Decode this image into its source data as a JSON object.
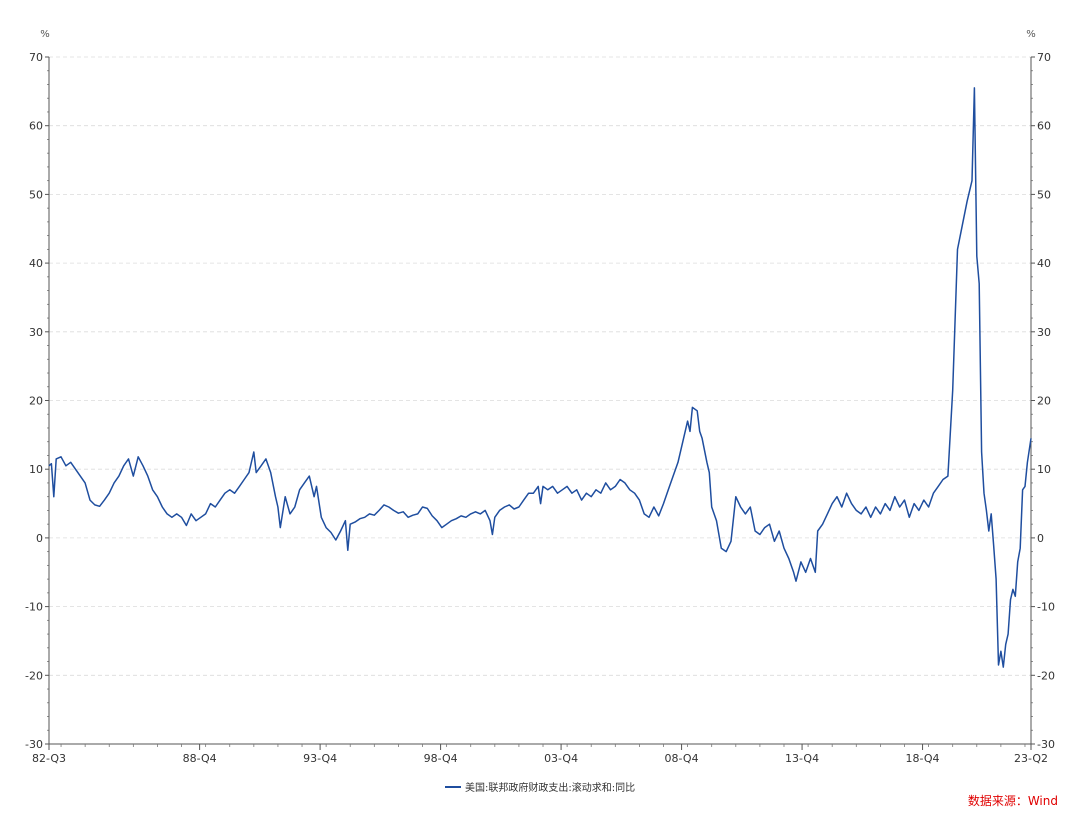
{
  "chart_data": {
    "type": "line",
    "y_unit_left": "%",
    "y_unit_right": "%",
    "ylim": [
      -30,
      70
    ],
    "y_ticks": [
      -30,
      -20,
      -10,
      0,
      10,
      20,
      30,
      40,
      50,
      60,
      70
    ],
    "x_ticks": [
      "82-Q3",
      "88-Q4",
      "93-Q4",
      "98-Q4",
      "03-Q4",
      "08-Q4",
      "13-Q4",
      "18-Q4",
      "23-Q2"
    ],
    "x_tick_positions": [
      1982.5,
      1988.75,
      1993.75,
      1998.75,
      2003.75,
      2008.75,
      2013.75,
      2018.75,
      2023.25
    ],
    "xlim": [
      1982.5,
      2023.25
    ],
    "grid": true,
    "legend_position": "bottom",
    "series": [
      {
        "name": "美国:联邦政府财政支出:滚动求和:同比",
        "color": "#1f4e9f",
        "points": [
          [
            1982.5,
            10.5
          ],
          [
            1982.6,
            10.8
          ],
          [
            1982.7,
            6.0
          ],
          [
            1982.8,
            11.5
          ],
          [
            1983.0,
            11.8
          ],
          [
            1983.2,
            10.5
          ],
          [
            1983.4,
            11.0
          ],
          [
            1983.6,
            10.0
          ],
          [
            1983.8,
            9.0
          ],
          [
            1984.0,
            8.0
          ],
          [
            1984.2,
            5.5
          ],
          [
            1984.4,
            4.8
          ],
          [
            1984.6,
            4.6
          ],
          [
            1984.8,
            5.5
          ],
          [
            1985.0,
            6.5
          ],
          [
            1985.2,
            8.0
          ],
          [
            1985.4,
            9.0
          ],
          [
            1985.6,
            10.5
          ],
          [
            1985.8,
            11.5
          ],
          [
            1986.0,
            9.0
          ],
          [
            1986.2,
            11.8
          ],
          [
            1986.4,
            10.5
          ],
          [
            1986.6,
            9.0
          ],
          [
            1986.8,
            7.0
          ],
          [
            1987.0,
            6.0
          ],
          [
            1987.2,
            4.5
          ],
          [
            1987.4,
            3.5
          ],
          [
            1987.6,
            3.0
          ],
          [
            1987.8,
            3.5
          ],
          [
            1988.0,
            3.0
          ],
          [
            1988.2,
            1.8
          ],
          [
            1988.4,
            3.5
          ],
          [
            1988.6,
            2.5
          ],
          [
            1988.8,
            3.0
          ],
          [
            1989.0,
            3.5
          ],
          [
            1989.2,
            5.0
          ],
          [
            1989.4,
            4.5
          ],
          [
            1989.6,
            5.5
          ],
          [
            1989.8,
            6.5
          ],
          [
            1990.0,
            7.0
          ],
          [
            1990.2,
            6.5
          ],
          [
            1990.4,
            7.5
          ],
          [
            1990.6,
            8.5
          ],
          [
            1990.8,
            9.5
          ],
          [
            1991.0,
            12.5
          ],
          [
            1991.1,
            9.5
          ],
          [
            1991.3,
            10.5
          ],
          [
            1991.5,
            11.5
          ],
          [
            1991.7,
            9.5
          ],
          [
            1991.9,
            6.0
          ],
          [
            1992.0,
            4.5
          ],
          [
            1992.1,
            1.5
          ],
          [
            1992.3,
            6.0
          ],
          [
            1992.5,
            3.5
          ],
          [
            1992.7,
            4.5
          ],
          [
            1992.9,
            7.0
          ],
          [
            1993.1,
            8.0
          ],
          [
            1993.3,
            9.0
          ],
          [
            1993.5,
            6.0
          ],
          [
            1993.6,
            7.5
          ],
          [
            1993.8,
            3.0
          ],
          [
            1994.0,
            1.5
          ],
          [
            1994.2,
            0.8
          ],
          [
            1994.4,
            -0.3
          ],
          [
            1994.6,
            1.0
          ],
          [
            1994.8,
            2.5
          ],
          [
            1994.9,
            -1.8
          ],
          [
            1995.0,
            2.0
          ],
          [
            1995.2,
            2.3
          ],
          [
            1995.4,
            2.8
          ],
          [
            1995.6,
            3.0
          ],
          [
            1995.8,
            3.5
          ],
          [
            1996.0,
            3.3
          ],
          [
            1996.2,
            4.0
          ],
          [
            1996.4,
            4.8
          ],
          [
            1996.6,
            4.5
          ],
          [
            1996.8,
            4.0
          ],
          [
            1997.0,
            3.6
          ],
          [
            1997.2,
            3.8
          ],
          [
            1997.4,
            3.0
          ],
          [
            1997.6,
            3.3
          ],
          [
            1997.8,
            3.5
          ],
          [
            1998.0,
            4.5
          ],
          [
            1998.2,
            4.3
          ],
          [
            1998.4,
            3.2
          ],
          [
            1998.6,
            2.5
          ],
          [
            1998.8,
            1.5
          ],
          [
            1999.0,
            2.0
          ],
          [
            1999.2,
            2.5
          ],
          [
            1999.4,
            2.8
          ],
          [
            1999.6,
            3.2
          ],
          [
            1999.8,
            3.0
          ],
          [
            2000.0,
            3.5
          ],
          [
            2000.2,
            3.8
          ],
          [
            2000.4,
            3.5
          ],
          [
            2000.6,
            4.0
          ],
          [
            2000.8,
            2.5
          ],
          [
            2000.9,
            0.5
          ],
          [
            2001.0,
            3.0
          ],
          [
            2001.2,
            4.0
          ],
          [
            2001.4,
            4.5
          ],
          [
            2001.6,
            4.8
          ],
          [
            2001.8,
            4.2
          ],
          [
            2002.0,
            4.5
          ],
          [
            2002.2,
            5.5
          ],
          [
            2002.4,
            6.5
          ],
          [
            2002.6,
            6.5
          ],
          [
            2002.8,
            7.5
          ],
          [
            2002.9,
            5.0
          ],
          [
            2003.0,
            7.5
          ],
          [
            2003.2,
            7.0
          ],
          [
            2003.4,
            7.5
          ],
          [
            2003.6,
            6.5
          ],
          [
            2003.8,
            7.0
          ],
          [
            2004.0,
            7.5
          ],
          [
            2004.2,
            6.5
          ],
          [
            2004.4,
            7.0
          ],
          [
            2004.6,
            5.5
          ],
          [
            2004.8,
            6.5
          ],
          [
            2005.0,
            6.0
          ],
          [
            2005.2,
            7.0
          ],
          [
            2005.4,
            6.5
          ],
          [
            2005.6,
            8.0
          ],
          [
            2005.8,
            7.0
          ],
          [
            2006.0,
            7.5
          ],
          [
            2006.2,
            8.5
          ],
          [
            2006.4,
            8.0
          ],
          [
            2006.6,
            7.0
          ],
          [
            2006.8,
            6.5
          ],
          [
            2007.0,
            5.5
          ],
          [
            2007.2,
            3.5
          ],
          [
            2007.4,
            3.0
          ],
          [
            2007.6,
            4.5
          ],
          [
            2007.8,
            3.2
          ],
          [
            2008.0,
            5.0
          ],
          [
            2008.2,
            7.0
          ],
          [
            2008.4,
            9.0
          ],
          [
            2008.6,
            11.0
          ],
          [
            2008.8,
            14.0
          ],
          [
            2009.0,
            17.0
          ],
          [
            2009.1,
            15.5
          ],
          [
            2009.2,
            19.0
          ],
          [
            2009.4,
            18.5
          ],
          [
            2009.5,
            15.5
          ],
          [
            2009.6,
            14.5
          ],
          [
            2009.8,
            11.0
          ],
          [
            2009.9,
            9.5
          ],
          [
            2010.0,
            4.5
          ],
          [
            2010.2,
            2.5
          ],
          [
            2010.4,
            -1.5
          ],
          [
            2010.6,
            -2.0
          ],
          [
            2010.8,
            -0.5
          ],
          [
            2011.0,
            6.0
          ],
          [
            2011.2,
            4.5
          ],
          [
            2011.4,
            3.5
          ],
          [
            2011.6,
            4.5
          ],
          [
            2011.8,
            1.0
          ],
          [
            2012.0,
            0.5
          ],
          [
            2012.2,
            1.5
          ],
          [
            2012.4,
            2.0
          ],
          [
            2012.6,
            -0.5
          ],
          [
            2012.8,
            1.0
          ],
          [
            2013.0,
            -1.5
          ],
          [
            2013.2,
            -3.0
          ],
          [
            2013.4,
            -5.0
          ],
          [
            2013.5,
            -6.3
          ],
          [
            2013.7,
            -3.5
          ],
          [
            2013.9,
            -5.0
          ],
          [
            2014.1,
            -3.0
          ],
          [
            2014.3,
            -5.0
          ],
          [
            2014.4,
            1.0
          ],
          [
            2014.6,
            2.0
          ],
          [
            2014.8,
            3.5
          ],
          [
            2015.0,
            5.0
          ],
          [
            2015.2,
            6.0
          ],
          [
            2015.4,
            4.5
          ],
          [
            2015.6,
            6.5
          ],
          [
            2015.8,
            5.0
          ],
          [
            2016.0,
            4.0
          ],
          [
            2016.2,
            3.5
          ],
          [
            2016.4,
            4.5
          ],
          [
            2016.6,
            3.0
          ],
          [
            2016.8,
            4.5
          ],
          [
            2017.0,
            3.5
          ],
          [
            2017.2,
            5.0
          ],
          [
            2017.4,
            4.0
          ],
          [
            2017.6,
            6.0
          ],
          [
            2017.8,
            4.5
          ],
          [
            2018.0,
            5.5
          ],
          [
            2018.2,
            3.0
          ],
          [
            2018.4,
            5.0
          ],
          [
            2018.6,
            4.0
          ],
          [
            2018.8,
            5.5
          ],
          [
            2019.0,
            4.5
          ],
          [
            2019.2,
            6.5
          ],
          [
            2019.4,
            7.5
          ],
          [
            2019.6,
            8.5
          ],
          [
            2019.8,
            9.0
          ],
          [
            2020.0,
            21.5
          ],
          [
            2020.2,
            42.0
          ],
          [
            2020.4,
            45.5
          ],
          [
            2020.6,
            49.0
          ],
          [
            2020.8,
            52.0
          ],
          [
            2020.9,
            65.5
          ],
          [
            2021.0,
            41.0
          ],
          [
            2021.1,
            37.0
          ],
          [
            2021.2,
            12.5
          ],
          [
            2021.3,
            6.5
          ],
          [
            2021.4,
            4.0
          ],
          [
            2021.5,
            1.0
          ],
          [
            2021.6,
            3.5
          ],
          [
            2021.7,
            -1.0
          ],
          [
            2021.8,
            -6.0
          ],
          [
            2021.9,
            -18.5
          ],
          [
            2022.0,
            -16.5
          ],
          [
            2022.1,
            -18.8
          ],
          [
            2022.2,
            -15.5
          ],
          [
            2022.3,
            -14.0
          ],
          [
            2022.4,
            -9.0
          ],
          [
            2022.5,
            -7.5
          ],
          [
            2022.6,
            -8.5
          ],
          [
            2022.7,
            -3.5
          ],
          [
            2022.8,
            -1.5
          ],
          [
            2022.9,
            7.0
          ],
          [
            2023.0,
            7.5
          ],
          [
            2023.1,
            11.0
          ],
          [
            2023.25,
            14.5
          ]
        ]
      }
    ],
    "source": "数据来源：Wind"
  }
}
